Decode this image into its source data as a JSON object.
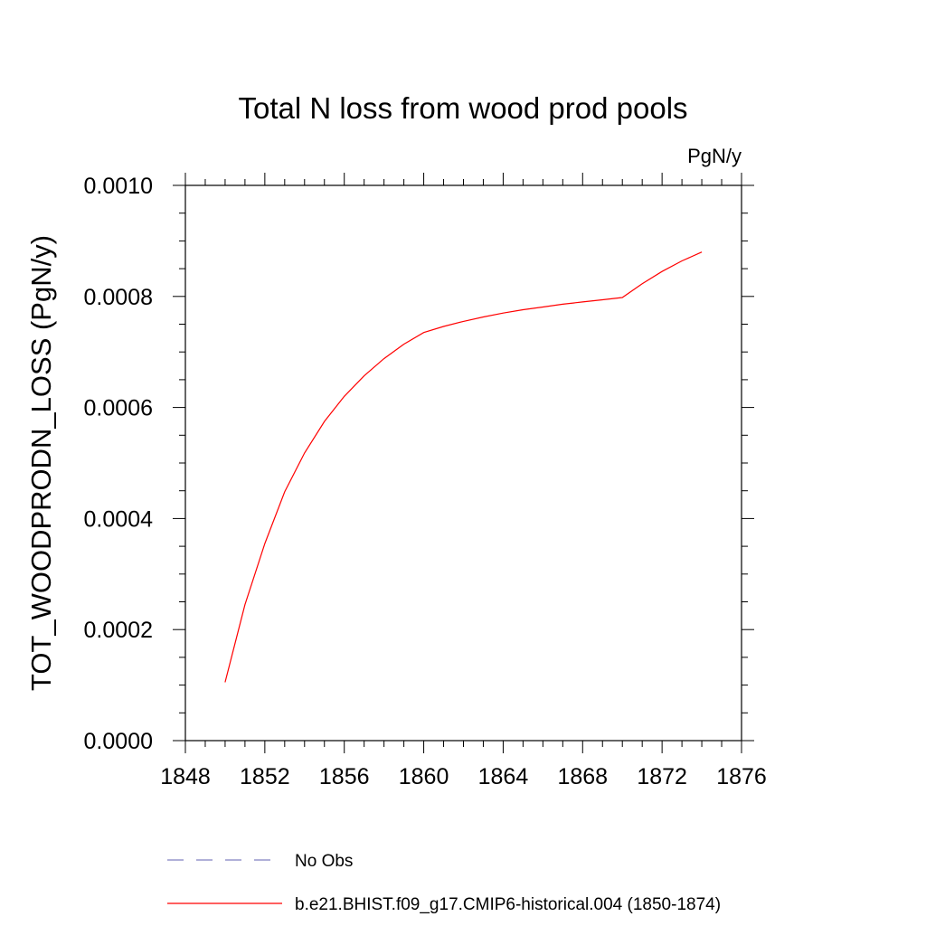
{
  "chart_data": {
    "type": "line",
    "title": "Total N loss from wood prod pools",
    "units_label": "PgN/y",
    "ylabel": "TOT_WOODPRODN_LOSS  (PgN/y)",
    "xlabel": "",
    "xlim": [
      1848,
      1876
    ],
    "ylim": [
      0.0,
      0.001
    ],
    "x_ticks": [
      "1848",
      "1852",
      "1856",
      "1860",
      "1864",
      "1868",
      "1872",
      "1876"
    ],
    "y_ticks": [
      "0.0000",
      "0.0002",
      "0.0004",
      "0.0006",
      "0.0008",
      "0.0010"
    ],
    "grid": false,
    "legend_position": "bottom",
    "series": [
      {
        "name": "No Obs",
        "color": "#8080c0",
        "dashed": true,
        "x": [],
        "y": []
      },
      {
        "name": "b.e21.BHIST.f09_g17.CMIP6-historical.004 (1850-1874)",
        "color": "#ff0000",
        "dashed": false,
        "x": [
          1850,
          1851,
          1852,
          1853,
          1854,
          1855,
          1856,
          1857,
          1858,
          1859,
          1860,
          1861,
          1862,
          1863,
          1864,
          1865,
          1866,
          1867,
          1868,
          1869,
          1870,
          1871,
          1872,
          1873,
          1874
        ],
        "y": [
          0.000105,
          0.000245,
          0.000355,
          0.000448,
          0.000518,
          0.000575,
          0.00062,
          0.000657,
          0.000688,
          0.000714,
          0.000735,
          0.000746,
          0.000755,
          0.000763,
          0.00077,
          0.000776,
          0.000781,
          0.000786,
          0.00079,
          0.000794,
          0.000798,
          0.000823,
          0.000845,
          0.000864,
          0.00088
        ]
      }
    ]
  }
}
